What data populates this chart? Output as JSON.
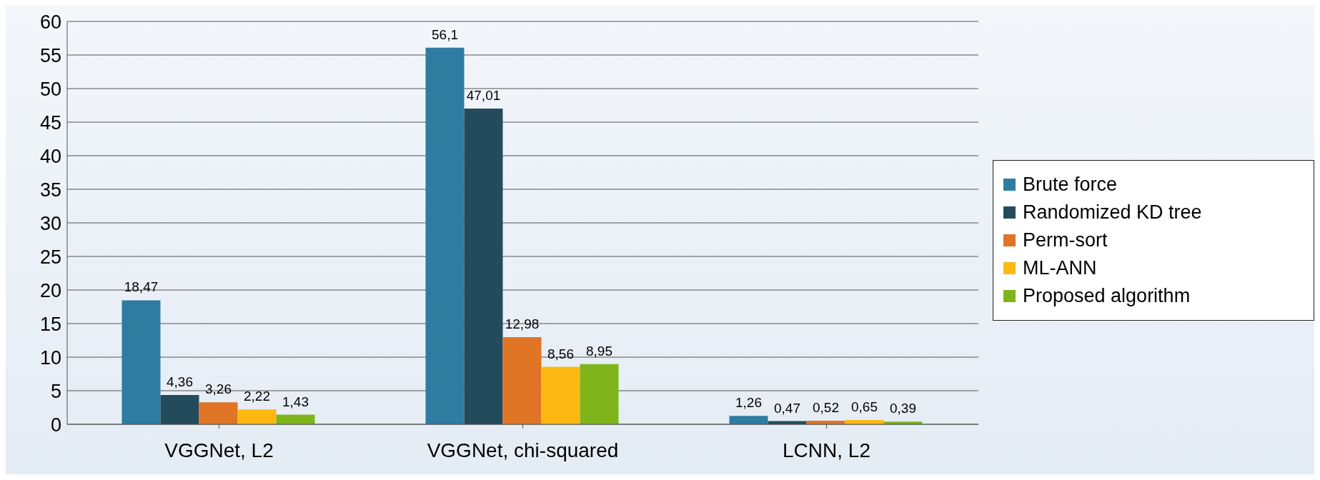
{
  "chart_data": {
    "type": "bar",
    "categories": [
      "VGGNet, L2",
      "VGGNet, chi-squared",
      "LCNN, L2"
    ],
    "series": [
      {
        "name": "Brute force",
        "color": "#2e7ca0",
        "values": [
          18.47,
          56.1,
          1.26
        ],
        "value_labels": [
          "18,47",
          "56,1",
          "1,26"
        ]
      },
      {
        "name": "Randomized KD tree",
        "color": "#244b5c",
        "values": [
          4.36,
          47.01,
          0.47
        ],
        "value_labels": [
          "4,36",
          "47,01",
          "0,47"
        ]
      },
      {
        "name": "Perm-sort",
        "color": "#e07526",
        "values": [
          3.26,
          12.98,
          0.52
        ],
        "value_labels": [
          "3,26",
          "12,98",
          "0,52"
        ]
      },
      {
        "name": "ML-ANN",
        "color": "#fdb813",
        "values": [
          2.22,
          8.56,
          0.65
        ],
        "value_labels": [
          "2,22",
          "8,56",
          "0,65"
        ]
      },
      {
        "name": "Proposed algorithm",
        "color": "#7fb51b",
        "values": [
          1.43,
          8.95,
          0.39
        ],
        "value_labels": [
          "1,43",
          "8,95",
          "0,39"
        ]
      }
    ],
    "ylim": [
      0,
      60
    ],
    "yticks": [
      0,
      5,
      10,
      15,
      20,
      25,
      30,
      35,
      40,
      45,
      50,
      55,
      60
    ],
    "grid": "y",
    "legend": "right"
  }
}
